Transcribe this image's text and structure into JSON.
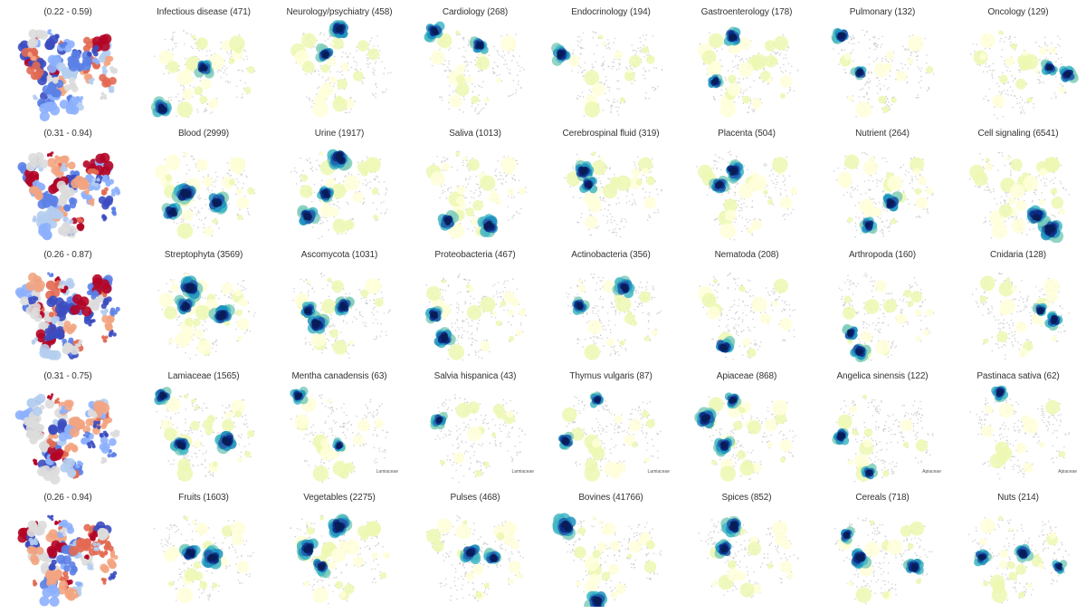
{
  "figure": {
    "layout": {
      "rows": 5,
      "cols": 8
    },
    "colormaps": {
      "similarity": [
        "#b40426",
        "#e26952",
        "#f3a481",
        "#dddcdc",
        "#b4cdf0",
        "#8db0fe",
        "#5b7fe6",
        "#3b4cc0"
      ],
      "enrichment": [
        "#ffffd9",
        "#edf8b1",
        "#c7e9b4",
        "#7fcdbb",
        "#41b6c4",
        "#1d91c0",
        "#225ea8",
        "#0c2c84",
        "#081d58"
      ],
      "background_points": "#c8c8c8"
    }
  },
  "chart_data": {
    "type": "scatter",
    "description": "Small multiples of 2D embedding maps; first column colored by similarity range, remaining panels highlight enrichment for each category (count in parentheses).",
    "rows": [
      {
        "range_label": "(0.22 - 0.59)",
        "panels": [
          {
            "title": "Infectious disease (471)",
            "category": "Infectious disease",
            "count": 471,
            "hotspots": [
              [
                30,
                100
              ],
              [
                75,
                55
              ]
            ]
          },
          {
            "title": "Neurology/psychiatry (458)",
            "category": "Neurology/psychiatry",
            "count": 458,
            "hotspots": [
              [
                75,
                12
              ],
              [
                60,
                40
              ]
            ]
          },
          {
            "title": "Cardiology (268)",
            "category": "Cardiology",
            "count": 268,
            "hotspots": [
              [
                30,
                15
              ],
              [
                80,
                30
              ]
            ]
          },
          {
            "title": "Endocrinology (194)",
            "category": "Endocrinology",
            "count": 194,
            "hotspots": [
              [
                20,
                40
              ]
            ]
          },
          {
            "title": "Gastroenterology (178)",
            "category": "Gastroenterology",
            "count": 178,
            "hotspots": [
              [
                60,
                20
              ],
              [
                40,
                70
              ]
            ]
          },
          {
            "title": "Pulmonary (132)",
            "category": "Pulmonary",
            "count": 132,
            "hotspots": [
              [
                30,
                20
              ],
              [
                50,
                60
              ]
            ]
          },
          {
            "title": "Oncology (129)",
            "category": "Oncology",
            "count": 129,
            "hotspots": [
              [
                130,
                62
              ],
              [
                110,
                55
              ]
            ]
          }
        ]
      },
      {
        "range_label": "(0.31 - 0.94)",
        "panels": [
          {
            "title": "Blood (2999)",
            "category": "Blood",
            "count": 2999,
            "hotspots": [
              [
                55,
                60
              ],
              [
                90,
                70
              ],
              [
                40,
                80
              ]
            ]
          },
          {
            "title": "Urine (1917)",
            "category": "Urine",
            "count": 1917,
            "hotspots": [
              [
                75,
                20
              ],
              [
                40,
                85
              ],
              [
                60,
                60
              ]
            ]
          },
          {
            "title": "Saliva (1013)",
            "category": "Saliva",
            "count": 1013,
            "hotspots": [
              [
                90,
                95
              ],
              [
                45,
                90
              ]
            ]
          },
          {
            "title": "Cerebrospinal fluid  (319)",
            "category": "Cerebrospinal fluid",
            "count": 319,
            "hotspots": [
              [
                45,
                35
              ],
              [
                50,
                50
              ]
            ]
          },
          {
            "title": "Placenta (504)",
            "category": "Placenta",
            "count": 504,
            "hotspots": [
              [
                60,
                35
              ],
              [
                45,
                50
              ]
            ]
          },
          {
            "title": "Nutrient (264)",
            "category": "Nutrient",
            "count": 264,
            "hotspots": [
              [
                85,
                70
              ],
              [
                60,
                95
              ]
            ]
          },
          {
            "title": "Cell signaling (6541)",
            "category": "Cell signaling",
            "count": 6541,
            "hotspots": [
              [
                110,
                100
              ],
              [
                95,
                85
              ]
            ]
          }
        ]
      },
      {
        "range_label": "(0.26 - 0.87)",
        "panels": [
          {
            "title": "Streptophyta (3569)",
            "category": "Streptophyta",
            "count": 3569,
            "hotspots": [
              [
                60,
                30
              ],
              [
                95,
                60
              ],
              [
                55,
                50
              ]
            ]
          },
          {
            "title": "Ascomycota (1031)",
            "category": "Ascomycota",
            "count": 1031,
            "hotspots": [
              [
                50,
                70
              ],
              [
                80,
                50
              ],
              [
                40,
                55
              ]
            ]
          },
          {
            "title": "Proteobacteria (467)",
            "category": "Proteobacteria",
            "count": 467,
            "hotspots": [
              [
                40,
                85
              ],
              [
                30,
                60
              ]
            ]
          },
          {
            "title": "Actinobacteria (356)",
            "category": "Actinobacteria",
            "count": 356,
            "hotspots": [
              [
                90,
                30
              ],
              [
                40,
                50
              ]
            ]
          },
          {
            "title": "Nematoda (208)",
            "category": "Nematoda",
            "count": 208,
            "hotspots": [
              [
                50,
                95
              ]
            ]
          },
          {
            "title": "Arthropoda (160)",
            "category": "Arthropoda",
            "count": 160,
            "hotspots": [
              [
                50,
                100
              ],
              [
                40,
                80
              ]
            ]
          },
          {
            "title": "Cnidaria (128)",
            "category": "Cnidaria",
            "count": 128,
            "hotspots": [
              [
                115,
                65
              ],
              [
                100,
                55
              ]
            ]
          }
        ]
      },
      {
        "range_label": "(0.31 - 0.75)",
        "panels": [
          {
            "title": "Lamiaceae (1565)",
            "category": "Lamiaceae",
            "count": 1565,
            "hotspots": [
              [
                100,
                65
              ],
              [
                50,
                70
              ],
              [
                30,
                15
              ]
            ]
          },
          {
            "title": "Mentha canadensis (63)",
            "category": "Mentha canadensis",
            "count": 63,
            "hotspots": [
              [
                30,
                15
              ],
              [
                75,
                70
              ]
            ],
            "corner_label": "Lamiaceae"
          },
          {
            "title": "Salvia hispanica (43)",
            "category": "Salvia hispanica",
            "count": 43,
            "hotspots": [
              [
                35,
                42
              ]
            ],
            "corner_label": "Lamiaceae"
          },
          {
            "title": "Thymus vulgaris (87)",
            "category": "Thymus vulgaris",
            "count": 87,
            "hotspots": [
              [
                25,
                65
              ],
              [
                60,
                20
              ]
            ],
            "corner_label": "Lamiaceae"
          },
          {
            "title": "Apiaceae (868)",
            "category": "Apiaceae",
            "count": 868,
            "hotspots": [
              [
                30,
                40
              ],
              [
                50,
                70
              ],
              [
                60,
                20
              ]
            ]
          },
          {
            "title": "Angelica sinensis (122)",
            "category": "Angelica sinensis",
            "count": 122,
            "hotspots": [
              [
                30,
                60
              ],
              [
                60,
                100
              ]
            ],
            "corner_label": "Apiaceae"
          },
          {
            "title": "Pastinaca sativa (62)",
            "category": "Pastinaca sativa",
            "count": 62,
            "hotspots": [
              [
                55,
                12
              ]
            ],
            "corner_label": "Apiaceae"
          }
        ]
      },
      {
        "range_label": "(0.26 - 0.94)",
        "panels": [
          {
            "title": "Fruits (1603)",
            "category": "Fruits",
            "count": 1603,
            "hotspots": [
              [
                85,
                60
              ],
              [
                60,
                55
              ]
            ]
          },
          {
            "title": "Vegetables (2275)",
            "category": "Vegetables",
            "count": 2275,
            "hotspots": [
              [
                75,
                25
              ],
              [
                40,
                50
              ],
              [
                55,
                70
              ]
            ]
          },
          {
            "title": "Pulses (468)",
            "category": "Pulses",
            "count": 468,
            "hotspots": [
              [
                70,
                55
              ],
              [
                95,
                60
              ]
            ]
          },
          {
            "title": "Bovines (41766)",
            "category": "Bovines",
            "count": 41766,
            "hotspots": [
              [
                25,
                25
              ],
              [
                60,
                108
              ]
            ]
          },
          {
            "title": "Spices (852)",
            "category": "Spices",
            "count": 852,
            "hotspots": [
              [
                60,
                25
              ],
              [
                50,
                50
              ]
            ]
          },
          {
            "title": "Cereals (718)",
            "category": "Cereals",
            "count": 718,
            "hotspots": [
              [
                50,
                60
              ],
              [
                110,
                70
              ],
              [
                35,
                35
              ]
            ]
          },
          {
            "title": "Nuts (214)",
            "category": "Nuts",
            "count": 214,
            "hotspots": [
              [
                80,
                55
              ],
              [
                35,
                60
              ],
              [
                120,
                70
              ]
            ]
          }
        ]
      }
    ]
  }
}
